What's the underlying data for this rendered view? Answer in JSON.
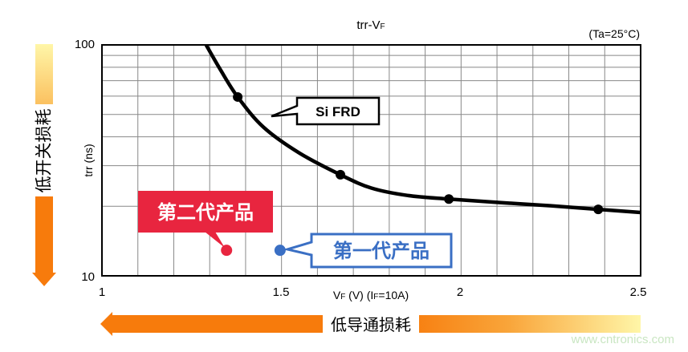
{
  "chart_data": {
    "type": "line",
    "title": "trr-VF",
    "title_main": "trr-V",
    "title_sub": "F",
    "condition": "(Ta=25°C)",
    "xlabel_parts": [
      "V",
      "F",
      " (V) (I",
      "F",
      "=10A)"
    ],
    "ylabel": "trr (ns)",
    "xlim": [
      1,
      2.5
    ],
    "ylim": [
      10,
      100
    ],
    "yscale": "log",
    "grid": true,
    "x_ticks": [
      "1",
      "1.5",
      "2",
      "2.5"
    ],
    "y_ticks": [
      "10",
      "100"
    ],
    "series": [
      {
        "name": "Si FRD",
        "curve": [
          [
            1.29,
            100
          ],
          [
            1.33,
            78
          ],
          [
            1.378,
            59.5
          ],
          [
            1.45,
            44
          ],
          [
            1.55,
            34
          ],
          [
            1.664,
            27.4
          ],
          [
            1.75,
            24
          ],
          [
            1.85,
            22.3
          ],
          [
            1.966,
            21.5
          ],
          [
            2.1,
            20.8
          ],
          [
            2.25,
            20.1
          ],
          [
            2.382,
            19.4
          ],
          [
            2.5,
            18.8
          ]
        ],
        "markers": [
          [
            1.378,
            59.5
          ],
          [
            1.664,
            27.4
          ],
          [
            1.966,
            21.5
          ],
          [
            2.382,
            19.4
          ]
        ],
        "color": "#000000"
      }
    ],
    "points": [
      {
        "label": "第二代产品",
        "x": 1.347,
        "y": 12.9,
        "color": "#e8253f"
      },
      {
        "label": "第一代产品",
        "x": 1.496,
        "y": 12.9,
        "color": "#3a6fc4"
      }
    ],
    "y_arrow_label": "低开关损耗",
    "x_arrow_label": "低导通损耗",
    "arrow_color": "#f77b0c"
  },
  "watermark": "www.cntronics.com"
}
